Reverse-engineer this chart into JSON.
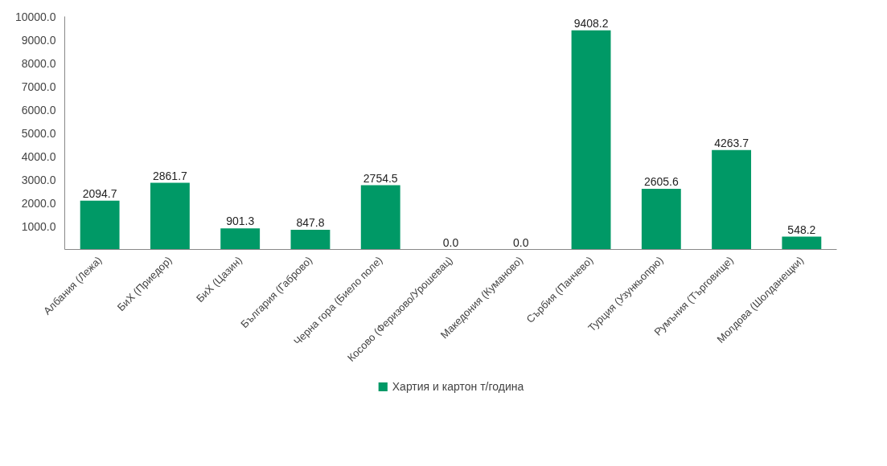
{
  "chart_data": {
    "type": "bar",
    "categories": [
      "Албания (Лежа)",
      "БиХ (Приедор)",
      "БиХ (Цазин)",
      "България (Габрово)",
      "Черна гора (Биело поле)",
      "Косово (Феризово/Урошевац)",
      "Македония (Куманово)",
      "Сърбия (Панчево)",
      "Турция (Узункьопрю)",
      "Румъния (Търговище)",
      "Молдова (Шолданещки)"
    ],
    "series": [
      {
        "name": "Хартия и картон т/година",
        "color": "#009966",
        "values": [
          2094.7,
          2861.7,
          901.3,
          847.8,
          2754.5,
          0,
          0,
          9408.2,
          2605.6,
          4263.7,
          548.2
        ],
        "value_labels": [
          "2094.7",
          "2861.7",
          "901.3",
          "847.8",
          "2754.5",
          "0.0",
          "0.0",
          "9408.2",
          "2605.6",
          "4263.7",
          "548.2"
        ]
      }
    ],
    "ylim": [
      0,
      10000
    ],
    "yticks": [
      {
        "value": 1000,
        "label": "1000.0"
      },
      {
        "value": 2000,
        "label": "2000.0"
      },
      {
        "value": 3000,
        "label": "3000.0"
      },
      {
        "value": 4000,
        "label": "4000.0"
      },
      {
        "value": 5000,
        "label": "5000.0"
      },
      {
        "value": 6000,
        "label": "6000.0"
      },
      {
        "value": 7000,
        "label": "7000.0"
      },
      {
        "value": 8000,
        "label": "8000.0"
      },
      {
        "value": 9000,
        "label": "9000.0"
      },
      {
        "value": 10000,
        "label": "10000.0"
      }
    ],
    "grid": false,
    "legend": "bottom"
  }
}
